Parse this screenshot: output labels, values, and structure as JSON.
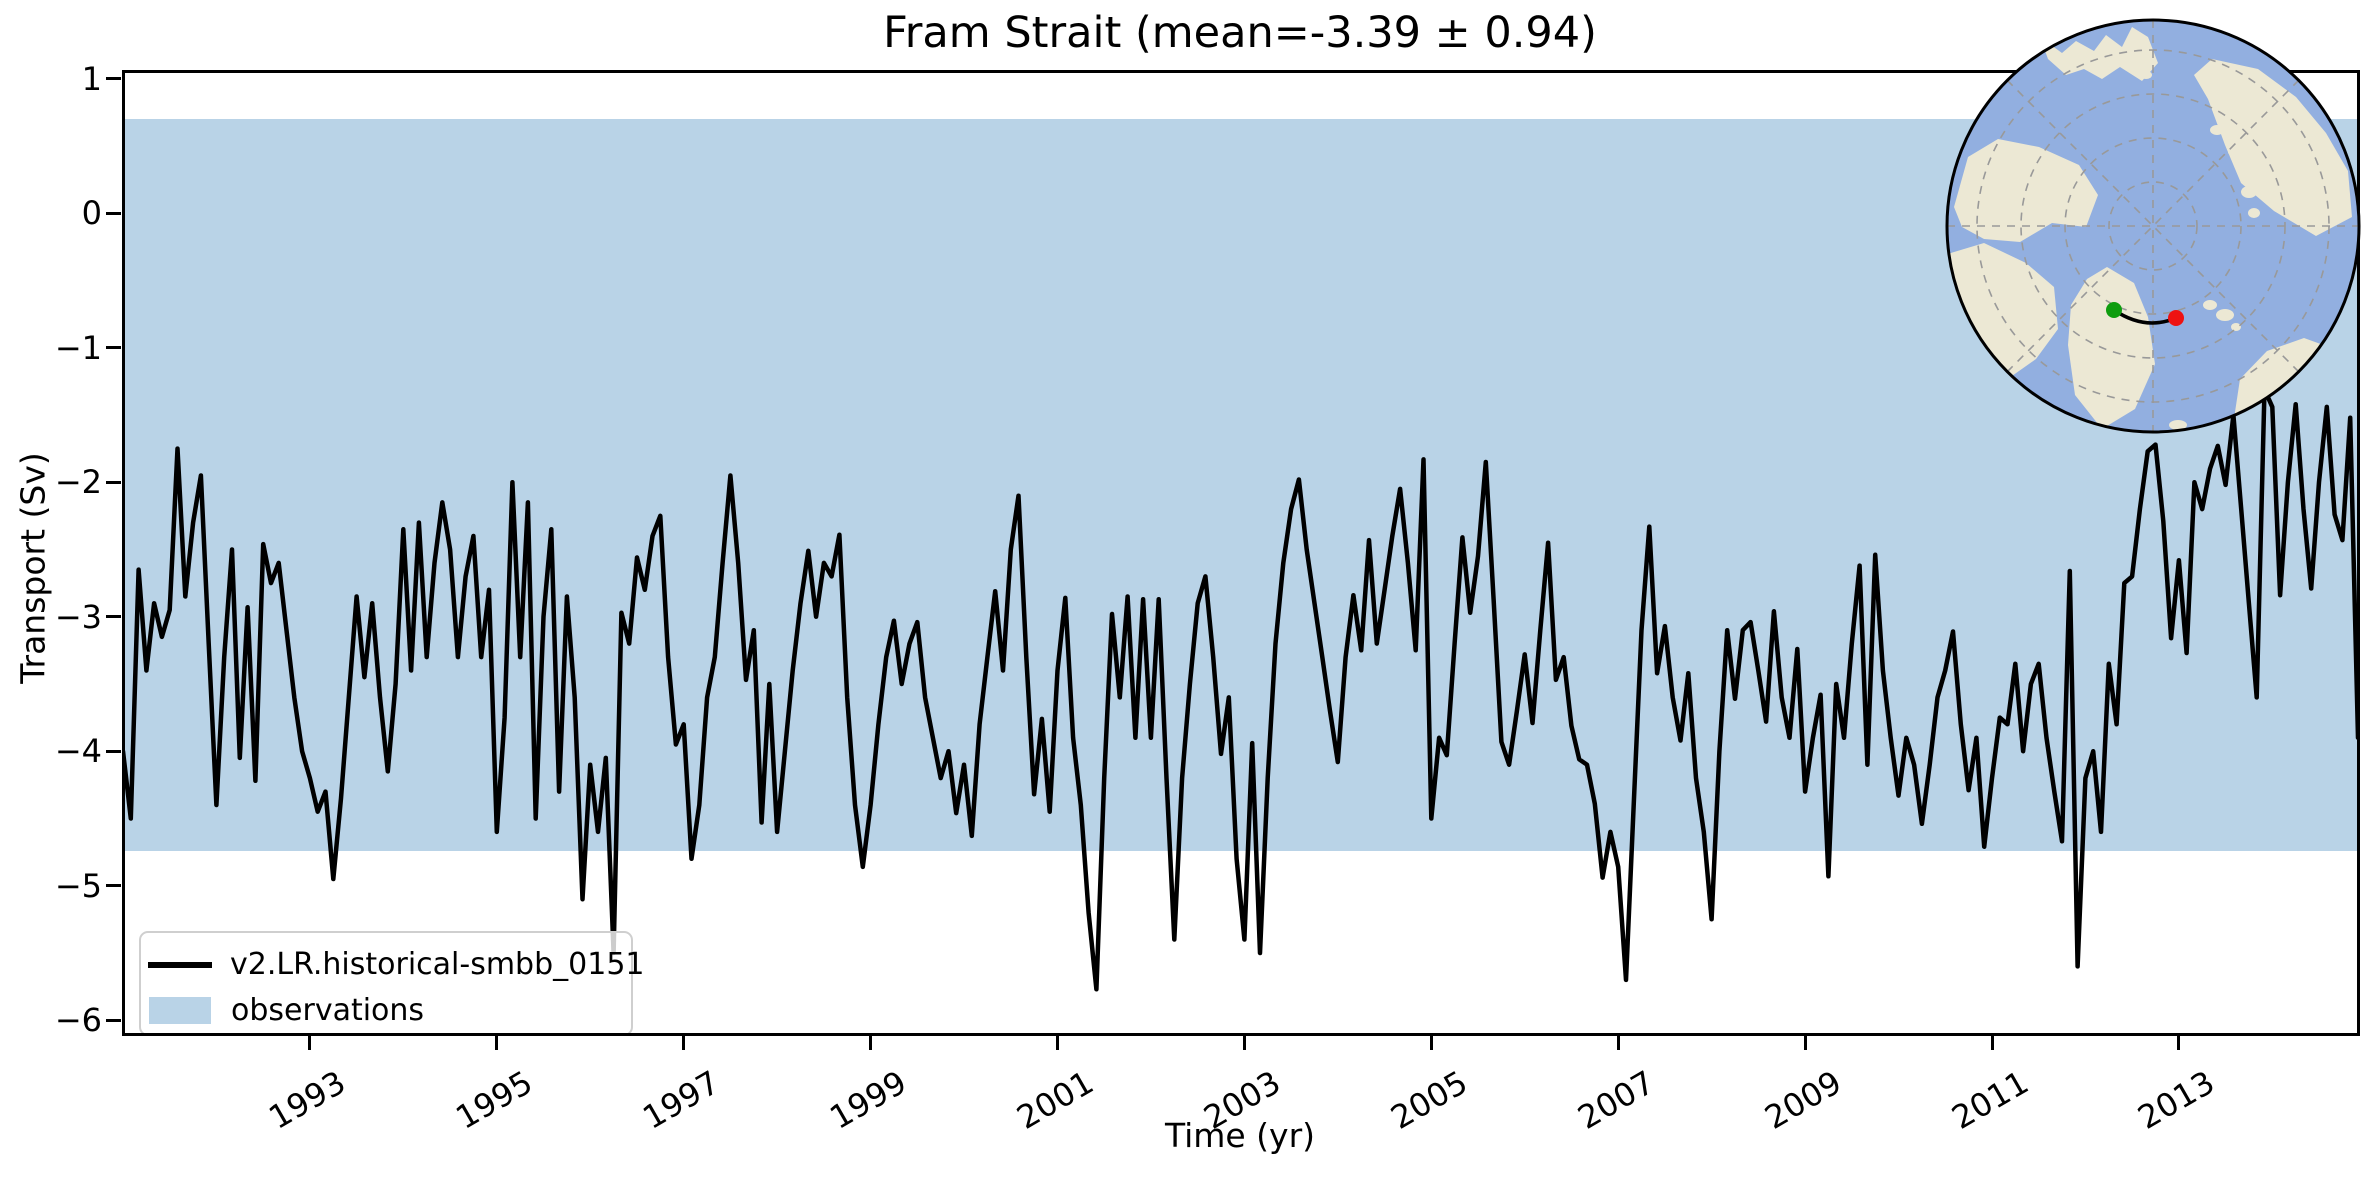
{
  "title": "Fram Strait (mean=-3.39 ± 0.94)",
  "axes": {
    "xlabel": "Time (yr)",
    "ylabel": "Transport (Sv)"
  },
  "legend": {
    "entries": [
      {
        "label": "v2.LR.historical-smbb_0151",
        "type": "line",
        "color": "#000000"
      },
      {
        "label": "observations",
        "type": "patch",
        "color": "#b9d3e7"
      }
    ]
  },
  "chart_data": {
    "type": "line",
    "title": "Fram Strait (mean=-3.39 ± 0.94)",
    "xlabel": "Time (yr)",
    "ylabel": "Transport (Sv)",
    "mean_label": "-3.39",
    "std_label": "0.94",
    "xlim": [
      1991.0,
      2014.917
    ],
    "ylim": [
      -6.11,
      1.05
    ],
    "grid": false,
    "legend_position": "lower left",
    "x_ticks": {
      "values": [
        1993,
        1995,
        1997,
        1999,
        2001,
        2003,
        2005,
        2007,
        2009,
        2011,
        2013
      ],
      "labels": [
        "1993",
        "1995",
        "1997",
        "1999",
        "2001",
        "2003",
        "2005",
        "2007",
        "2009",
        "2011",
        "2013"
      ]
    },
    "y_ticks": {
      "values": [
        1,
        0,
        -1,
        -2,
        -3,
        -4,
        -5,
        -6
      ],
      "labels": [
        "1",
        "0",
        "−1",
        "−2",
        "−3",
        "−4",
        "−5",
        "−6"
      ]
    },
    "observations_band": {
      "label": "observations",
      "ymin": -4.74,
      "ymax": 0.7,
      "color": "#b9d3e7"
    },
    "series": [
      {
        "name": "v2.LR.historical-smbb_0151",
        "color": "#000000",
        "linewidth": 4.5,
        "x_start_year": 1991.0,
        "x_step_months": 1,
        "values": [
          -4.0,
          -4.5,
          -2.65,
          -3.4,
          -2.9,
          -3.15,
          -2.95,
          -1.75,
          -2.85,
          -2.3,
          -1.95,
          -3.2,
          -4.4,
          -3.3,
          -2.5,
          -4.05,
          -2.93,
          -4.22,
          -2.46,
          -2.75,
          -2.6,
          -3.1,
          -3.6,
          -4.0,
          -4.2,
          -4.45,
          -4.3,
          -4.95,
          -4.35,
          -3.6,
          -2.85,
          -3.45,
          -2.9,
          -3.6,
          -4.15,
          -3.5,
          -2.35,
          -3.4,
          -2.3,
          -3.3,
          -2.6,
          -2.15,
          -2.5,
          -3.3,
          -2.7,
          -2.4,
          -3.3,
          -2.8,
          -4.6,
          -3.75,
          -2.0,
          -3.3,
          -2.15,
          -4.5,
          -3.0,
          -2.35,
          -4.3,
          -2.85,
          -3.6,
          -5.1,
          -4.1,
          -4.6,
          -4.05,
          -5.5,
          -2.97,
          -3.2,
          -2.56,
          -2.8,
          -2.4,
          -2.25,
          -3.3,
          -3.95,
          -3.8,
          -4.8,
          -4.4,
          -3.6,
          -3.3,
          -2.6,
          -1.95,
          -2.6,
          -3.47,
          -3.1,
          -4.53,
          -3.5,
          -4.6,
          -4.0,
          -3.4,
          -2.9,
          -2.51,
          -3.0,
          -2.6,
          -2.7,
          -2.39,
          -3.6,
          -4.4,
          -4.86,
          -4.4,
          -3.8,
          -3.3,
          -3.03,
          -3.5,
          -3.2,
          -3.04,
          -3.6,
          -3.9,
          -4.2,
          -4.0,
          -4.46,
          -4.1,
          -4.63,
          -3.8,
          -3.3,
          -2.81,
          -3.4,
          -2.5,
          -2.1,
          -3.3,
          -4.32,
          -3.76,
          -4.45,
          -3.4,
          -2.86,
          -3.9,
          -4.4,
          -5.2,
          -5.77,
          -4.2,
          -2.98,
          -3.6,
          -2.85,
          -3.9,
          -2.87,
          -3.9,
          -2.87,
          -4.2,
          -5.4,
          -4.2,
          -3.5,
          -2.9,
          -2.7,
          -3.3,
          -4.02,
          -3.6,
          -4.8,
          -5.4,
          -3.94,
          -5.5,
          -4.2,
          -3.2,
          -2.6,
          -2.2,
          -1.98,
          -2.5,
          -2.9,
          -3.3,
          -3.7,
          -4.08,
          -3.3,
          -2.84,
          -3.25,
          -2.43,
          -3.2,
          -2.8,
          -2.4,
          -2.05,
          -2.6,
          -3.25,
          -1.83,
          -4.5,
          -3.9,
          -4.03,
          -3.2,
          -2.41,
          -2.97,
          -2.55,
          -1.85,
          -2.87,
          -3.93,
          -4.1,
          -3.7,
          -3.28,
          -3.79,
          -3.1,
          -2.45,
          -3.47,
          -3.3,
          -3.81,
          -4.06,
          -4.1,
          -4.39,
          -4.94,
          -4.6,
          -4.86,
          -5.7,
          -4.4,
          -3.1,
          -2.33,
          -3.42,
          -3.07,
          -3.6,
          -3.92,
          -3.42,
          -4.2,
          -4.6,
          -5.25,
          -4.0,
          -3.1,
          -3.61,
          -3.1,
          -3.04,
          -3.4,
          -3.78,
          -2.96,
          -3.6,
          -3.9,
          -3.24,
          -4.3,
          -3.9,
          -3.58,
          -4.93,
          -3.5,
          -3.9,
          -3.2,
          -2.62,
          -4.1,
          -2.54,
          -3.4,
          -3.9,
          -4.33,
          -3.9,
          -4.1,
          -4.54,
          -4.1,
          -3.6,
          -3.4,
          -3.11,
          -3.8,
          -4.29,
          -3.9,
          -4.71,
          -4.2,
          -3.75,
          -3.8,
          -3.35,
          -4.0,
          -3.5,
          -3.35,
          -3.9,
          -4.3,
          -4.67,
          -2.66,
          -5.6,
          -4.2,
          -4.0,
          -4.6,
          -3.35,
          -3.8,
          -2.75,
          -2.7,
          -2.2,
          -1.77,
          -1.72,
          -2.29,
          -3.16,
          -2.58,
          -3.27,
          -2.0,
          -2.2,
          -1.9,
          -1.73,
          -2.02,
          -1.5,
          -2.2,
          -2.9,
          -3.6,
          -1.31,
          -1.44,
          -2.84,
          -2.0,
          -1.42,
          -2.2,
          -2.79,
          -2.0,
          -1.44,
          -2.24,
          -2.43,
          -1.52,
          -3.9
        ]
      }
    ]
  },
  "inset_map": {
    "projection": "north-polar-stereographic",
    "ocean_color": "#92afe0",
    "land_color": "#ece8d4",
    "graticule_color": "#999999",
    "border_color": "#000000",
    "start_marker_color": "#0f9d0f",
    "end_marker_color": "#ee1212",
    "transect_color": "#000000"
  }
}
